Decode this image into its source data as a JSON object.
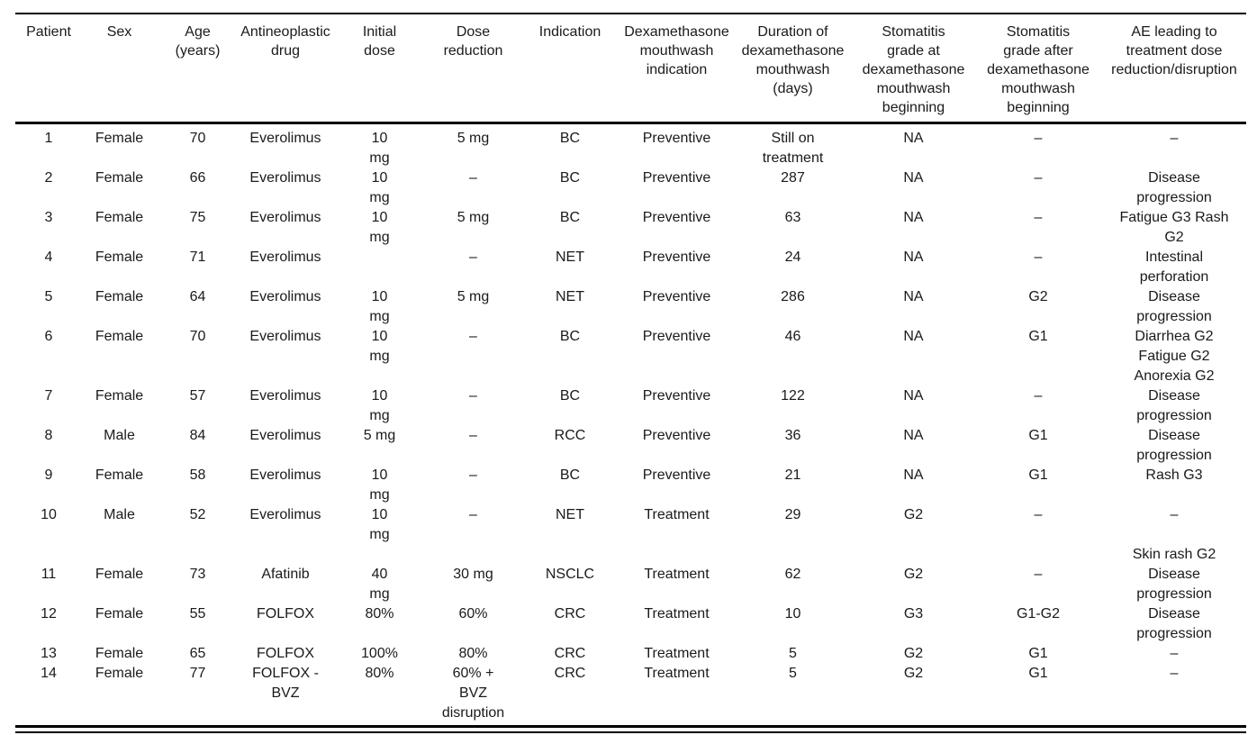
{
  "colors": {
    "background": "#ffffff",
    "text": "#1a1a1a",
    "rule": "#000000"
  },
  "table": {
    "columns": [
      "Patient",
      "Sex",
      "Age\n(years)",
      "Antineoplastic\ndrug",
      "Initial\ndose",
      "Dose\nreduction",
      "Indication",
      "Dexamethasone\nmouthwash\nindication",
      "Duration of\ndexamethasone\nmouthwash\n(days)",
      "Stomatitis\ngrade at\ndexamethasone\nmouthwash\nbeginning",
      "Stomatitis\ngrade after\ndexamethasone\nmouthwash\nbeginning",
      "AE leading to\ntreatment dose\nreduction/disruption"
    ],
    "rows": [
      [
        "1",
        "Female",
        "70",
        "Everolimus",
        "10\nmg",
        "5 mg",
        "BC",
        "Preventive",
        "Still on\ntreatment",
        "NA",
        "–",
        "–"
      ],
      [
        "2",
        "Female",
        "66",
        "Everolimus",
        "10\nmg",
        "–",
        "BC",
        "Preventive",
        "287",
        "NA",
        "–",
        "Disease\nprogression"
      ],
      [
        "3",
        "Female",
        "75",
        "Everolimus",
        "10\nmg",
        "5 mg",
        "BC",
        "Preventive",
        "63",
        "NA",
        "–",
        "Fatigue G3 Rash\nG2"
      ],
      [
        "4",
        "Female",
        "71",
        "Everolimus",
        "",
        "–",
        "NET",
        "Preventive",
        "24",
        "NA",
        "–",
        "Intestinal\nperforation"
      ],
      [
        "5",
        "Female",
        "64",
        "Everolimus",
        "10\nmg",
        "5 mg",
        "NET",
        "Preventive",
        "286",
        "NA",
        "G2",
        "Disease\nprogression"
      ],
      [
        "6",
        "Female",
        "70",
        "Everolimus",
        "10\nmg",
        "–",
        "BC",
        "Preventive",
        "46",
        "NA",
        "G1",
        "Diarrhea G2\nFatigue G2\nAnorexia G2"
      ],
      [
        "7",
        "Female",
        "57",
        "Everolimus",
        "10\nmg",
        "–",
        "BC",
        "Preventive",
        "122",
        "NA",
        "–",
        "Disease\nprogression"
      ],
      [
        "8",
        "Male",
        "84",
        "Everolimus",
        "5 mg",
        "–",
        "RCC",
        "Preventive",
        "36",
        "NA",
        "G1",
        "Disease\nprogression"
      ],
      [
        "9",
        "Female",
        "58",
        "Everolimus",
        "10\nmg",
        "–",
        "BC",
        "Preventive",
        "21",
        "NA",
        "G1",
        "Rash G3"
      ],
      [
        "10",
        "Male",
        "52",
        "Everolimus",
        "10\nmg",
        "–",
        "NET",
        "Treatment",
        "29",
        "G2",
        "–",
        "–"
      ],
      [
        "11",
        "Female",
        "73",
        "Afatinib",
        "40\nmg",
        "30 mg",
        "NSCLC",
        "Treatment",
        "62",
        "G2",
        "–",
        "Skin rash G2\nDisease\nprogression"
      ],
      [
        "12",
        "Female",
        "55",
        "FOLFOX",
        "80%",
        "60%",
        "CRC",
        "Treatment",
        "10",
        "G3",
        "G1-G2",
        "Disease\nprogression"
      ],
      [
        "13",
        "Female",
        "65",
        "FOLFOX",
        "100%",
        "80%",
        "CRC",
        "Treatment",
        "5",
        "G2",
        "G1",
        "–"
      ],
      [
        "14",
        "Female",
        "77",
        "FOLFOX -\nBVZ",
        "80%",
        "60% +\nBVZ\ndisruption",
        "CRC",
        "Treatment",
        "5",
        "G2",
        "G1",
        "–"
      ]
    ]
  }
}
